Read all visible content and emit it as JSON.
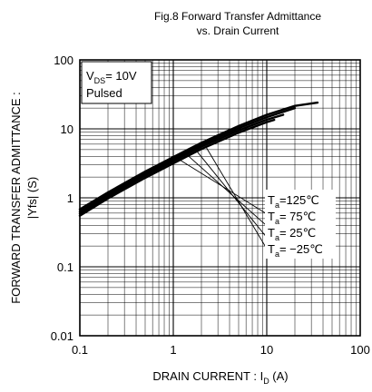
{
  "chart_data": {
    "type": "line",
    "title_line1": "Fig.8 Forward Transfer Admittance",
    "title_line2": "vs. Drain Current",
    "xlabel": "DRAIN CURRENT : I",
    "xlabel_sub": "D",
    "xlabel_unit": " (A)",
    "ylabel": "FORWARD TRANSFER ADMITTANCE :",
    "ylabel2": "|Yfs| (S)",
    "x_scale": "log",
    "y_scale": "log",
    "xlim": [
      0.1,
      100
    ],
    "ylim": [
      0.01,
      100
    ],
    "x_ticks": [
      {
        "value": 0.1,
        "label": "0.1"
      },
      {
        "value": 1,
        "label": "1"
      },
      {
        "value": 10,
        "label": "10"
      },
      {
        "value": 100,
        "label": "100"
      }
    ],
    "y_ticks": [
      {
        "value": 100,
        "label": "100"
      },
      {
        "value": 10,
        "label": "10"
      },
      {
        "value": 1,
        "label": "1"
      },
      {
        "value": 0.1,
        "label": "0.1"
      },
      {
        "value": 0.01,
        "label": "0.01"
      }
    ],
    "grid": true,
    "condition": {
      "vds_prefix": "V",
      "vds_sub": "DS",
      "vds_value": "= 10V",
      "pulsed": "Pulsed"
    },
    "series": [
      {
        "name": "Ta=125°C",
        "label_var": "T",
        "label_sub": "a",
        "label_val": "=125℃",
        "x": [
          0.1,
          0.2,
          0.5,
          1,
          2,
          5,
          10,
          20,
          35
        ],
        "y": [
          0.68,
          1.2,
          2.4,
          3.9,
          6.3,
          11.0,
          16.0,
          21.5,
          24.0
        ]
      },
      {
        "name": "Ta=75°C",
        "label_var": "T",
        "label_sub": "a",
        "label_val": "= 75℃",
        "x": [
          0.1,
          0.2,
          0.5,
          1,
          2,
          5,
          10,
          20
        ],
        "y": [
          0.63,
          1.12,
          2.25,
          3.65,
          5.9,
          10.2,
          14.8,
          20.0
        ]
      },
      {
        "name": "Ta=25°C",
        "label_var": "T",
        "label_sub": "a",
        "label_val": "= 25℃",
        "x": [
          0.1,
          0.2,
          0.5,
          1,
          2,
          5,
          10,
          15
        ],
        "y": [
          0.59,
          1.05,
          2.1,
          3.4,
          5.5,
          9.5,
          13.6,
          16.0
        ]
      },
      {
        "name": "Ta=-25°C",
        "label_var": "T",
        "label_sub": "a",
        "label_val": "= −25℃",
        "x": [
          0.1,
          0.2,
          0.5,
          1,
          2,
          5,
          10,
          12
        ],
        "y": [
          0.55,
          0.98,
          1.95,
          3.15,
          5.1,
          8.8,
          12.5,
          13.5
        ]
      }
    ],
    "leader_lines": [
      {
        "from": [
          1.05,
          3.9
        ],
        "to": [
          10.5,
          0.56
        ]
      },
      {
        "from": [
          1.35,
          4.4
        ],
        "to": [
          10.5,
          0.37
        ]
      },
      {
        "from": [
          1.75,
          4.9
        ],
        "to": [
          10.5,
          0.245
        ]
      },
      {
        "from": [
          2.25,
          5.4
        ],
        "to": [
          10.5,
          0.163
        ]
      }
    ]
  }
}
